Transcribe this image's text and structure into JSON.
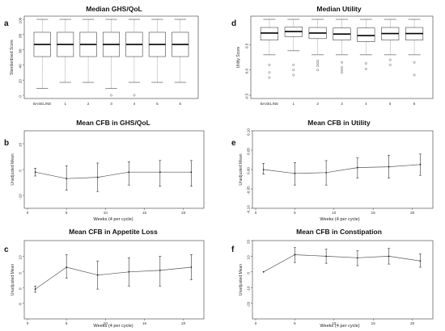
{
  "chart_data": [
    {
      "panel": "a",
      "type": "box",
      "title": "Median GHS/QoL",
      "ylabel": "Standardised Score",
      "categories": [
        "BASELINE",
        "1",
        "2",
        "3",
        "4",
        "5",
        "6"
      ],
      "ylim": [
        0,
        100
      ],
      "yticks": [
        "0",
        "20",
        "40",
        "60",
        "80",
        "100"
      ],
      "boxes": [
        {
          "whisker_low": 9,
          "q1": 51,
          "median": 67,
          "q3": 83,
          "whisker_high": 100,
          "outliers": []
        },
        {
          "whisker_low": 17,
          "q1": 51,
          "median": 67,
          "q3": 83,
          "whisker_high": 100,
          "outliers": []
        },
        {
          "whisker_low": 17,
          "q1": 51,
          "median": 67,
          "q3": 83,
          "whisker_high": 100,
          "outliers": []
        },
        {
          "whisker_low": 9,
          "q1": 51,
          "median": 67,
          "q3": 83,
          "whisker_high": 100,
          "outliers": [
            0
          ]
        },
        {
          "whisker_low": 17,
          "q1": 51,
          "median": 67,
          "q3": 83,
          "whisker_high": 100,
          "outliers": [
            0
          ]
        },
        {
          "whisker_low": 17,
          "q1": 51,
          "median": 67,
          "q3": 83,
          "whisker_high": 100,
          "outliers": []
        },
        {
          "whisker_low": 17,
          "q1": 51,
          "median": 67,
          "q3": 83,
          "whisker_high": 100,
          "outliers": []
        }
      ]
    },
    {
      "panel": "d",
      "type": "box",
      "title": "Median Utility",
      "ylabel": "Utility Score",
      "categories": [
        "BASELINE",
        "1",
        "2",
        "3",
        "4",
        "5",
        "6"
      ],
      "ylim": [
        -0.5,
        1.0
      ],
      "yticks": [
        "-0.5",
        "0.0",
        "0.5"
      ],
      "boxes": [
        {
          "whisker_low": 0.3,
          "q1": 0.59,
          "median": 0.73,
          "q3": 0.84,
          "whisker_high": 1.0,
          "outliers": [
            0.1,
            -0.05,
            -0.15
          ]
        },
        {
          "whisker_low": 0.38,
          "q1": 0.66,
          "median": 0.76,
          "q3": 0.85,
          "whisker_high": 1.0,
          "outliers": [
            0.1,
            0.0,
            -0.1
          ]
        },
        {
          "whisker_low": 0.3,
          "q1": 0.62,
          "median": 0.73,
          "q3": 0.84,
          "whisker_high": 1.0,
          "outliers": [
            0.18,
            0.13,
            0.08,
            0.0
          ]
        },
        {
          "whisker_low": 0.3,
          "q1": 0.59,
          "median": 0.71,
          "q3": 0.83,
          "whisker_high": 1.0,
          "outliers": [
            0.15,
            0.05,
            0.0,
            -0.05
          ]
        },
        {
          "whisker_low": 0.3,
          "q1": 0.56,
          "median": 0.68,
          "q3": 0.83,
          "whisker_high": 1.0,
          "outliers": [
            0.13,
            0.02
          ]
        },
        {
          "whisker_low": 0.3,
          "q1": 0.59,
          "median": 0.72,
          "q3": 0.84,
          "whisker_high": 1.0,
          "outliers": [
            0.2,
            0.1
          ]
        },
        {
          "whisker_low": 0.3,
          "q1": 0.59,
          "median": 0.72,
          "q3": 0.84,
          "whisker_high": 1.0,
          "outliers": [
            0.15,
            -0.1
          ]
        }
      ]
    },
    {
      "panel": "b",
      "type": "line",
      "title": "Mean CFB in GHS/QoL",
      "xlabel": "Weeks (4 per cycle)",
      "ylabel": "Unadjusted Mean",
      "xlim": [
        0,
        22
      ],
      "ylim": [
        -15,
        15
      ],
      "xticks": [
        "0",
        "5",
        "10",
        "15",
        "20"
      ],
      "yticks": [
        "-10",
        "0",
        "10"
      ],
      "x": [
        1,
        5,
        9,
        13,
        17,
        21
      ],
      "y": [
        -1,
        -3.5,
        -3,
        -1,
        -1,
        -1
      ],
      "err_low": [
        -2.5,
        -8,
        -8.5,
        -6,
        -6.5,
        -6.5
      ],
      "err_high": [
        0.5,
        1.5,
        2.5,
        3,
        3.5,
        3.5
      ]
    },
    {
      "panel": "e",
      "type": "line",
      "title": "Mean CFB in Utility",
      "xlabel": "Weeks (4 per cycle)",
      "ylabel": "Unadjusted Mean",
      "xlim": [
        0,
        22
      ],
      "ylim": [
        -0.1,
        0.1
      ],
      "xticks": [
        "0",
        "5",
        "10",
        "15",
        "20"
      ],
      "yticks": [
        "-0.10",
        "-0.05",
        "0.00",
        "0.05",
        "0.10"
      ],
      "x": [
        1,
        5,
        9,
        13,
        17,
        21
      ],
      "y": [
        0.0,
        -0.01,
        -0.008,
        0.005,
        0.007,
        0.013
      ],
      "err_low": [
        -0.012,
        -0.04,
        -0.04,
        -0.022,
        -0.022,
        -0.015
      ],
      "err_high": [
        0.016,
        0.018,
        0.023,
        0.03,
        0.037,
        0.04
      ]
    },
    {
      "panel": "c",
      "type": "line",
      "title": "Mean CFB in Appetite Loss",
      "xlabel": "Weeks (4 per cycle)",
      "ylabel": "Unadjusted Mean",
      "xlim": [
        0,
        22
      ],
      "ylim": [
        -10,
        15
      ],
      "xticks": [
        "0",
        "5",
        "10",
        "15",
        "20"
      ],
      "yticks": [
        "-5",
        "0",
        "5",
        "10"
      ],
      "x": [
        1,
        5,
        9,
        13,
        17,
        21
      ],
      "y": [
        -0.5,
        6.5,
        4,
        5,
        5.5,
        6.5
      ],
      "err_low": [
        -1.5,
        3,
        -0.5,
        0.5,
        0.5,
        2.5
      ],
      "err_high": [
        0.5,
        10.5,
        8.5,
        9.5,
        10,
        10.5
      ]
    },
    {
      "panel": "f",
      "type": "line",
      "title": "Mean CFB in Constipation",
      "xlabel": "Weeks (4 per cycle)",
      "ylabel": "Unadjusted Mean",
      "xlim": [
        0,
        22
      ],
      "ylim": [
        -30,
        20
      ],
      "xticks": [
        "0",
        "5",
        "10",
        "15",
        "20"
      ],
      "yticks": [
        "-20",
        "-10",
        "0",
        "10",
        "20"
      ],
      "x": [
        1,
        5,
        9,
        13,
        17,
        21
      ],
      "y": [
        0,
        11,
        10,
        9,
        10,
        7
      ],
      "err_low": [
        0,
        6,
        5.5,
        4,
        5,
        3
      ],
      "err_high": [
        0,
        15.5,
        14.5,
        13.5,
        15,
        11.5
      ]
    }
  ]
}
